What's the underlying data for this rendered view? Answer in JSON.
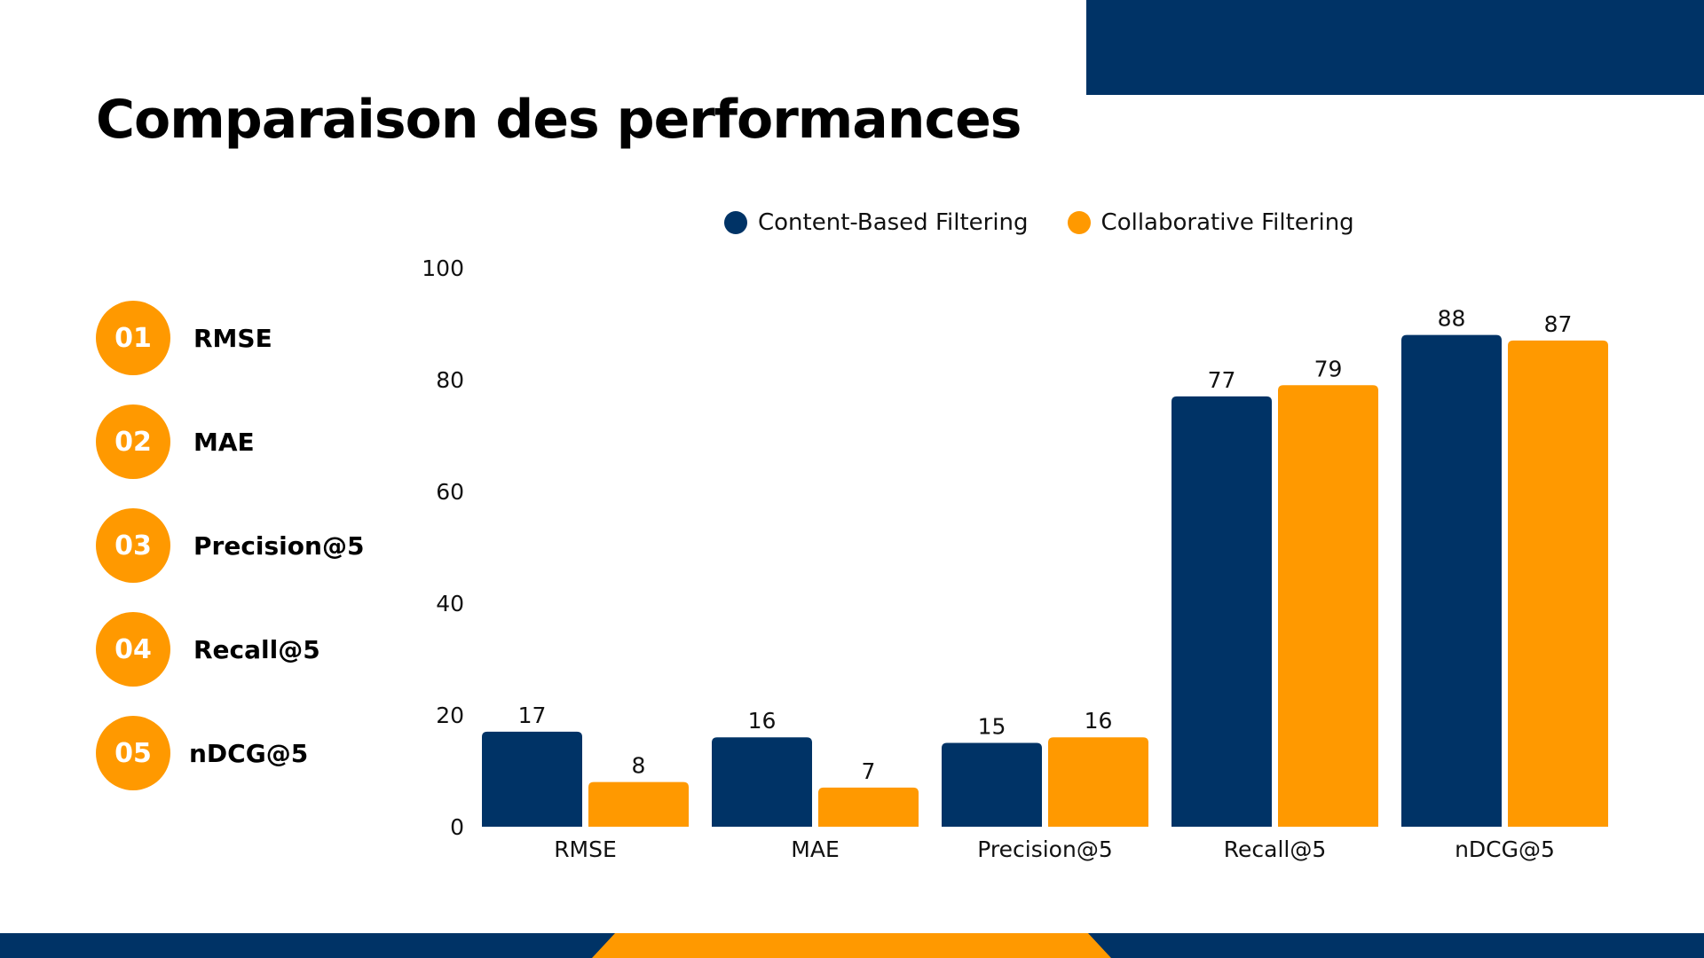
{
  "slide": {
    "title": "Comparaison des performances"
  },
  "colors": {
    "navy": "#003366",
    "orange": "#ff9900"
  },
  "metrics": [
    {
      "number": "01",
      "label": "RMSE"
    },
    {
      "number": "02",
      "label": "MAE"
    },
    {
      "number": "03",
      "label": "Precision@5"
    },
    {
      "number": "04",
      "label": "Recall@5"
    },
    {
      "number": "05",
      "label": "nDCG@5"
    }
  ],
  "chart_data": {
    "type": "bar",
    "categories": [
      "RMSE",
      "MAE",
      "Precision@5",
      "Recall@5",
      "nDCG@5"
    ],
    "series": [
      {
        "name": "Content-Based Filtering",
        "color": "#003366",
        "values": [
          17,
          16,
          15,
          77,
          88
        ]
      },
      {
        "name": "Collaborative Filtering",
        "color": "#ff9900",
        "values": [
          8,
          7,
          16,
          79,
          87
        ]
      }
    ],
    "yticks": [
      "0",
      "20",
      "40",
      "60",
      "80",
      "100"
    ],
    "ylim": [
      0,
      100
    ],
    "data_labels": true,
    "grid": false,
    "legend": "top-center"
  }
}
